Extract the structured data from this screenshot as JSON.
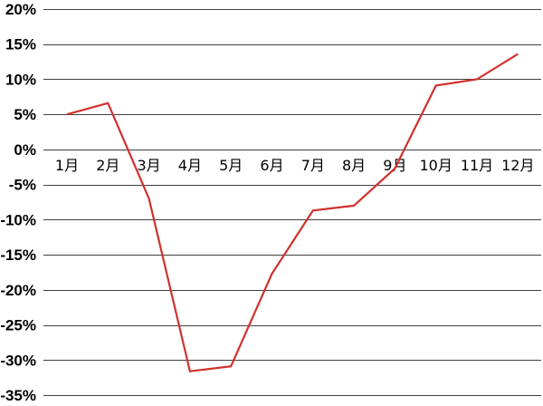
{
  "chart_data": {
    "type": "line",
    "title": "",
    "xlabel": "",
    "ylabel": "",
    "categories": [
      "1月",
      "2月",
      "3月",
      "4月",
      "5月",
      "6月",
      "7月",
      "8月",
      "9月",
      "10月",
      "11月",
      "12月"
    ],
    "series": [
      {
        "values": [
          5.0,
          6.6,
          -7.0,
          -31.6,
          -30.9,
          -17.7,
          -8.7,
          -8.0,
          -2.7,
          9.1,
          10.0,
          13.6
        ],
        "color": "#d0312d"
      }
    ],
    "ylim": [
      -35,
      20
    ],
    "yticks": [
      20,
      15,
      10,
      5,
      0,
      -5,
      -10,
      -15,
      -20,
      -25,
      -30,
      -35
    ],
    "ytick_labels": [
      "20%",
      "15%",
      "10%",
      "5%",
      "0%",
      "-5%",
      "-10%",
      "-15%",
      "-20%",
      "-25%",
      "-30%",
      "-35%"
    ],
    "grid": true,
    "legend": "none"
  }
}
